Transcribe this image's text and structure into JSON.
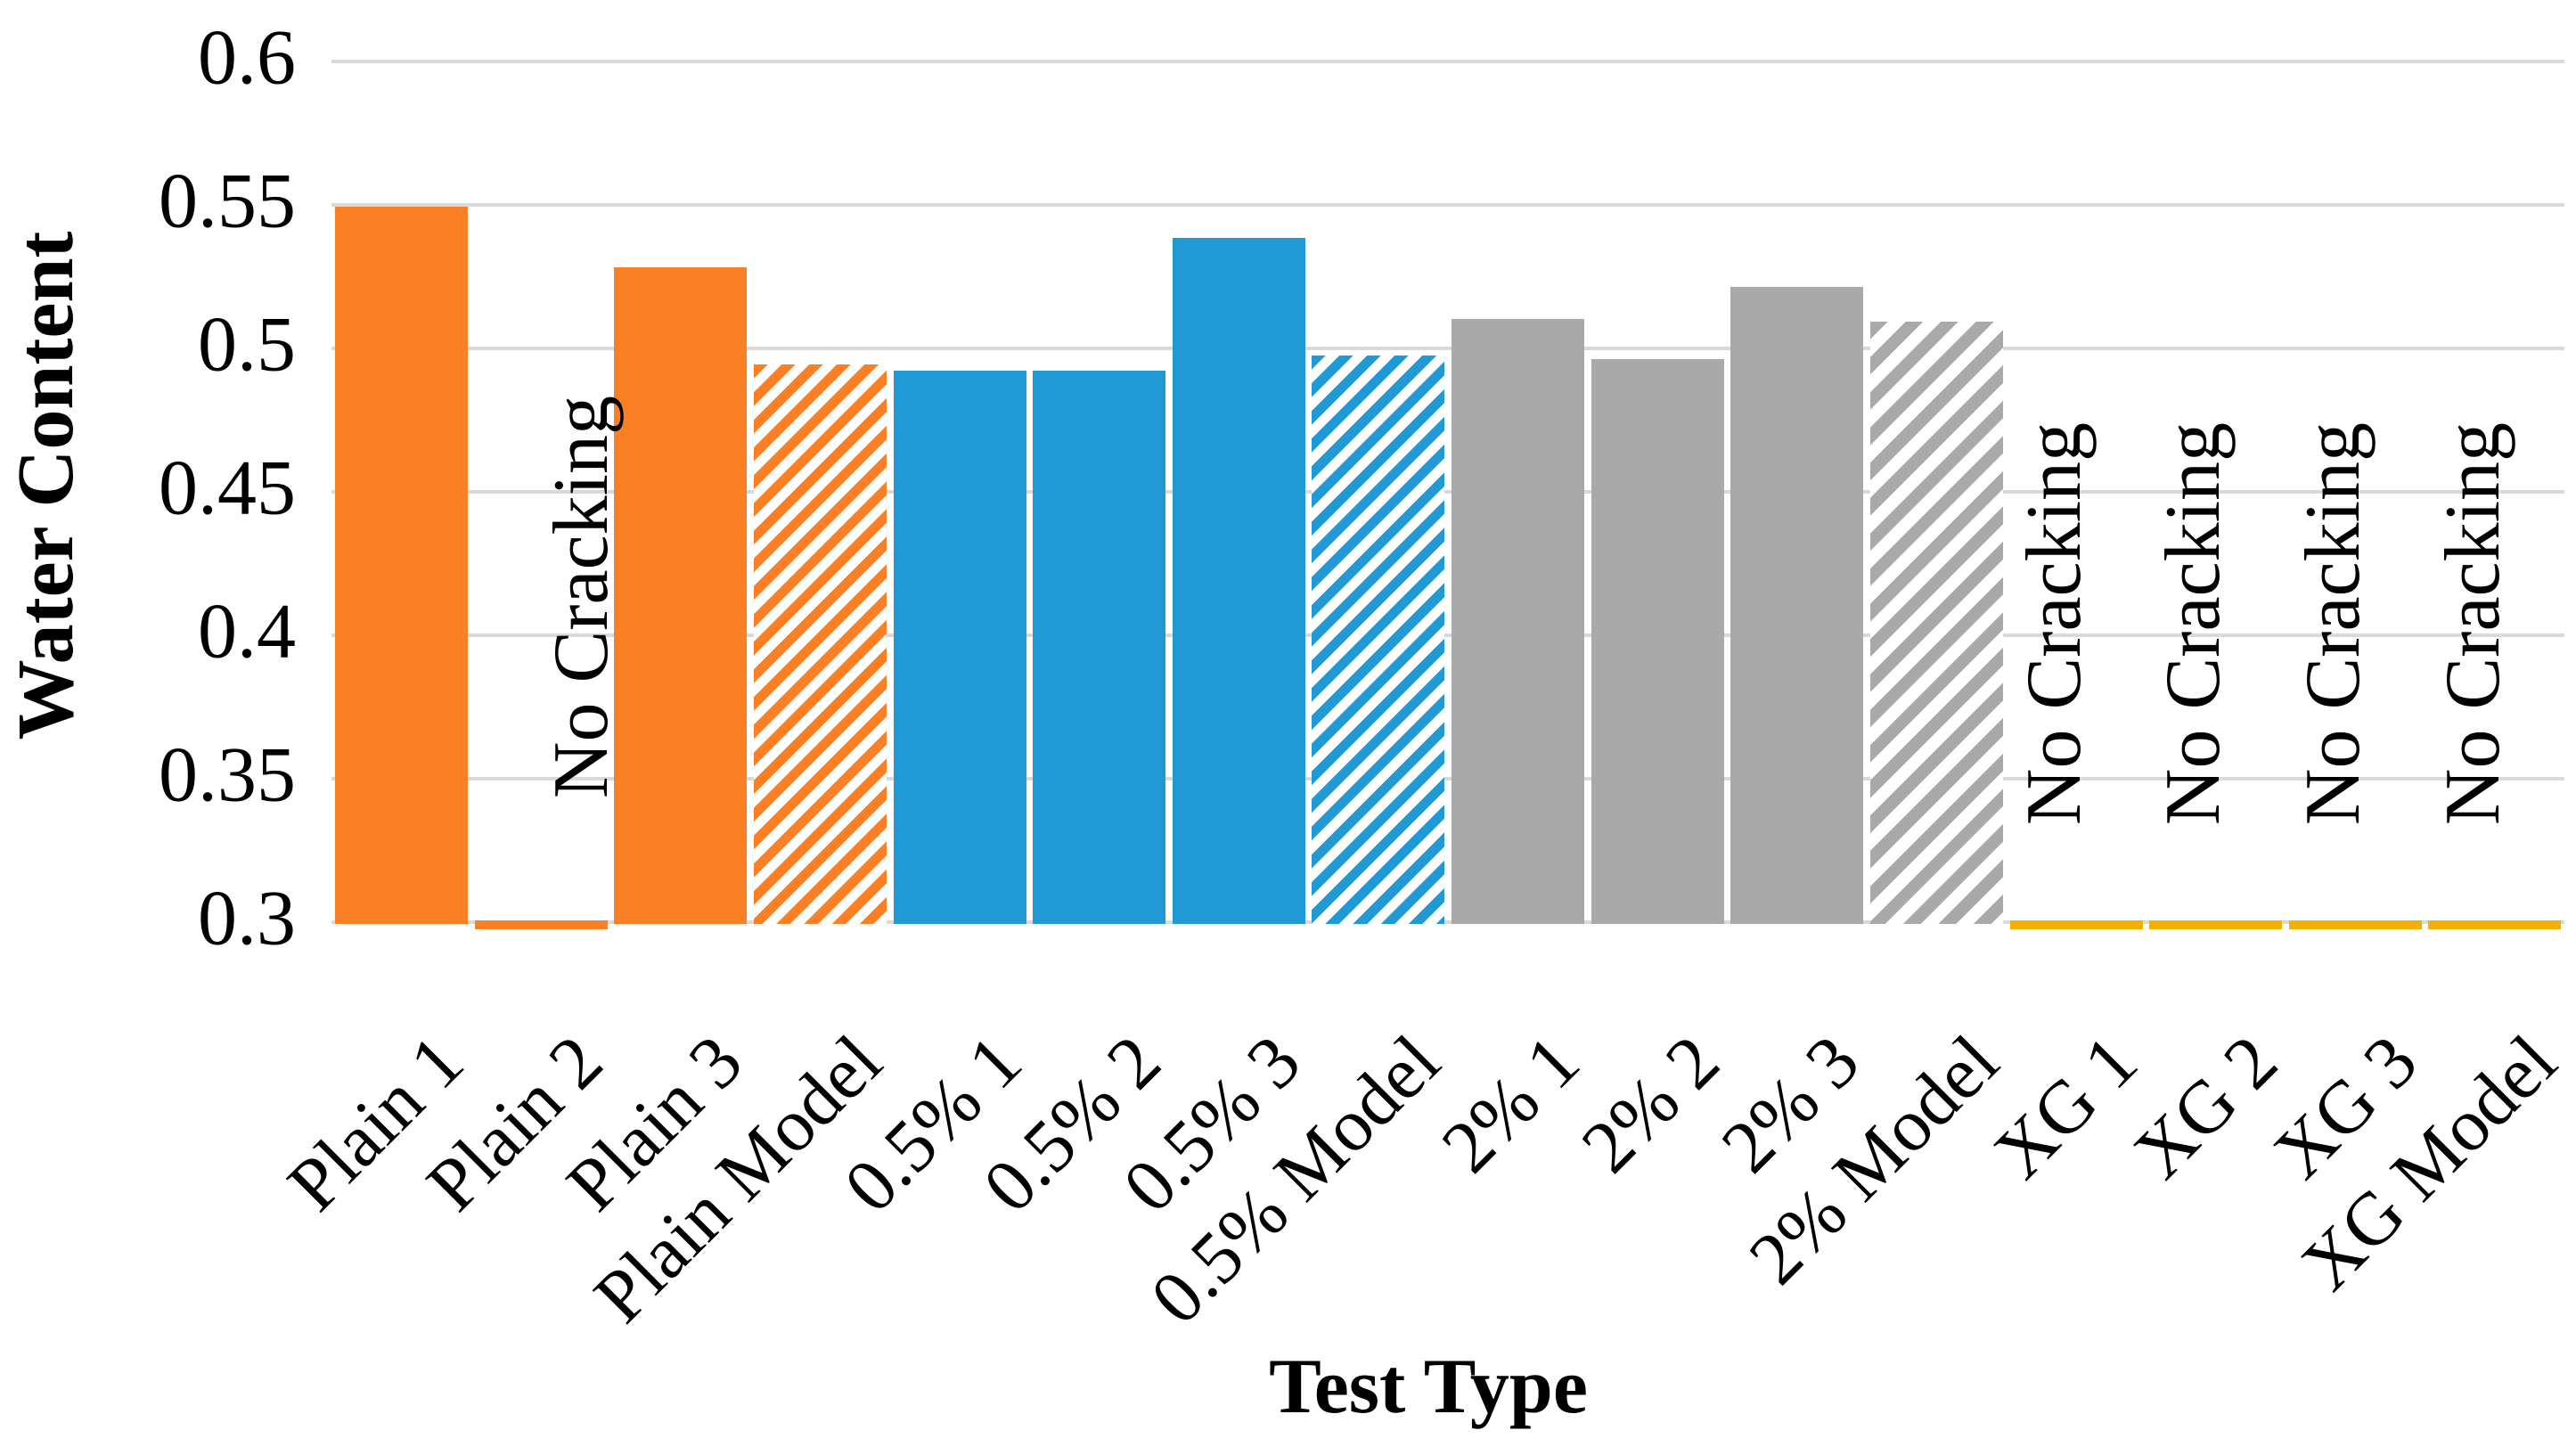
{
  "page": {
    "background": "#FFFFFF"
  },
  "chart_data": {
    "type": "bar",
    "title": "",
    "xlabel": "Test Type",
    "ylabel": "Water Content",
    "ylim": [
      0.3,
      0.6
    ],
    "ytick_step": 0.05,
    "yticks": [
      0.6,
      0.55,
      0.5,
      0.45,
      0.4,
      0.35,
      0.3
    ],
    "ytick_labels": [
      "0.6",
      "0.55",
      "0.5",
      "0.45",
      "0.4",
      "0.35",
      "0.3"
    ],
    "grid": true,
    "gridline_color": "#D9D9D9",
    "legend_position": "none",
    "annotation_text": "No Cracking",
    "background_color": "#FFFFFF",
    "text_color": "#000000",
    "groups": [
      {
        "name": "Plain",
        "color": "#FB8025"
      },
      {
        "name": "0.5%",
        "color": "#2199D5"
      },
      {
        "name": "2%",
        "color": "#A9A9A9"
      },
      {
        "name": "XG",
        "color": "#F2B100"
      }
    ],
    "categories": [
      "Plain 1",
      "Plain 2",
      "Plain 3",
      "Plain Model",
      "0.5% 1",
      "0.5% 2",
      "0.5% 3",
      "0.5% Model",
      "2% 1",
      "2% 2",
      "2% 3",
      "2% Model",
      "XG 1",
      "XG 2",
      "XG 3",
      "XG Model"
    ],
    "bars": [
      {
        "label": "Plain 1",
        "value": 0.55,
        "group": "Plain",
        "style": "solid",
        "no_cracking": false
      },
      {
        "label": "Plain 2",
        "value": 0.302,
        "group": "Plain",
        "style": "solid",
        "no_cracking": true
      },
      {
        "label": "Plain 3",
        "value": 0.529,
        "group": "Plain",
        "style": "solid",
        "no_cracking": false
      },
      {
        "label": "Plain Model",
        "value": 0.495,
        "group": "Plain",
        "style": "hatched",
        "no_cracking": false
      },
      {
        "label": "0.5% 1",
        "value": 0.493,
        "group": "0.5%",
        "style": "solid",
        "no_cracking": false
      },
      {
        "label": "0.5% 2",
        "value": 0.493,
        "group": "0.5%",
        "style": "solid",
        "no_cracking": false
      },
      {
        "label": "0.5% 3",
        "value": 0.539,
        "group": "0.5%",
        "style": "solid",
        "no_cracking": false
      },
      {
        "label": "0.5% Model",
        "value": 0.498,
        "group": "0.5%",
        "style": "hatched",
        "no_cracking": false
      },
      {
        "label": "2% 1",
        "value": 0.511,
        "group": "2%",
        "style": "solid",
        "no_cracking": false
      },
      {
        "label": "2% 2",
        "value": 0.497,
        "group": "2%",
        "style": "solid",
        "no_cracking": false
      },
      {
        "label": "2% 3",
        "value": 0.522,
        "group": "2%",
        "style": "solid",
        "no_cracking": false
      },
      {
        "label": "2% Model",
        "value": 0.51,
        "group": "2%",
        "style": "hatched",
        "no_cracking": false
      },
      {
        "label": "XG 1",
        "value": 0.302,
        "group": "XG",
        "style": "solid",
        "no_cracking": true
      },
      {
        "label": "XG 2",
        "value": 0.302,
        "group": "XG",
        "style": "solid",
        "no_cracking": true
      },
      {
        "label": "XG 3",
        "value": 0.302,
        "group": "XG",
        "style": "solid",
        "no_cracking": true
      },
      {
        "label": "XG Model",
        "value": 0.302,
        "group": "XG",
        "style": "solid",
        "no_cracking": true
      }
    ]
  }
}
